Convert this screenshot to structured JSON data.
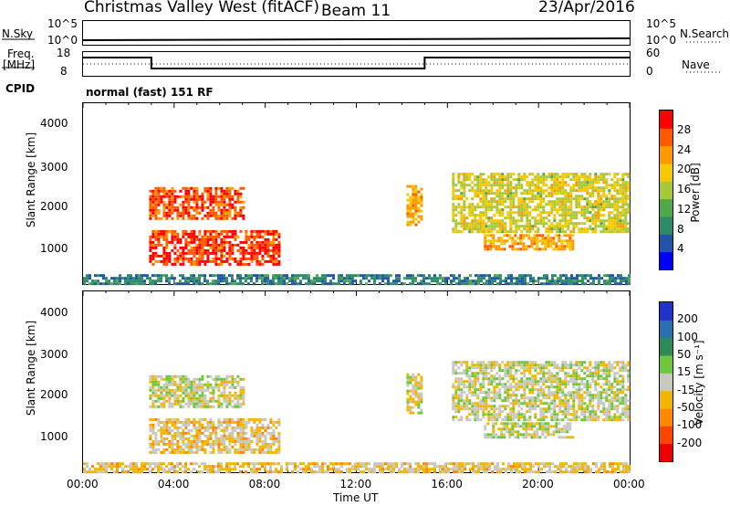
{
  "header": {
    "title": "Christmas Valley West (fitACF)",
    "beam": "Beam 11",
    "date": "23/Apr/2016"
  },
  "strip_nsky": {
    "left_label": "N.Sky",
    "right_label": "N.Search",
    "left_ticks": [
      "10^5",
      "10^0"
    ],
    "right_ticks": [
      "10^5",
      "10^0"
    ]
  },
  "strip_freq": {
    "left_label_1": "Freq.",
    "left_label_2": "[MHz]",
    "right_label": "Nave",
    "left_ticks": [
      "18",
      "8"
    ],
    "right_ticks": [
      "60",
      "0"
    ]
  },
  "cpid": {
    "label": "CPID",
    "mode": "normal (fast) 151 RF"
  },
  "panel_power": {
    "ylabel": "Slant Range [km]",
    "yticks": [
      "4000",
      "3000",
      "2000",
      "1000"
    ],
    "colorbar_label": "Power [dB]",
    "colorbar_ticks": [
      "28",
      "24",
      "20",
      "16",
      "12",
      "8",
      "4"
    ],
    "colors": [
      "#0000ff",
      "#2255aa",
      "#2e8b6a",
      "#4fa84a",
      "#a8c83a",
      "#f5c800",
      "#ff9900",
      "#ff5a00",
      "#ff0000"
    ]
  },
  "panel_velocity": {
    "ylabel": "Slant Range [km]",
    "yticks": [
      "4000",
      "3000",
      "2000",
      "1000"
    ],
    "colorbar_label": "Velocity [m s⁻¹]",
    "colorbar_ticks": [
      "200",
      "100",
      "50",
      "15",
      "-15",
      "-50",
      "-100",
      "-200"
    ],
    "colors": [
      "#2233cc",
      "#2b6fb3",
      "#2e8b57",
      "#6cc83a",
      "#c8c8c0",
      "#f2b600",
      "#ff8800",
      "#ff4400",
      "#ee0000"
    ]
  },
  "x_axis": {
    "label": "Time UT",
    "ticks": [
      "00:00",
      "04:00",
      "08:00",
      "12:00",
      "16:00",
      "20:00",
      "00:00"
    ]
  },
  "chart_data": [
    {
      "type": "heatmap",
      "name": "power",
      "title": "",
      "xlabel": "Time UT",
      "ylabel": "Slant Range [km]",
      "xlim": [
        0,
        24
      ],
      "ylim": [
        180,
        4600
      ],
      "zlim": [
        0,
        32
      ],
      "zlabel": "Power [dB]",
      "regions": [
        {
          "t0": 2.9,
          "t1": 7.1,
          "r0": 1750,
          "r1": 2550,
          "value": 27
        },
        {
          "t0": 2.9,
          "t1": 8.6,
          "r0": 650,
          "r1": 1500,
          "value": 28
        },
        {
          "t0": 14.2,
          "t1": 14.9,
          "r0": 1600,
          "r1": 2600,
          "value": 22
        },
        {
          "t0": 16.2,
          "t1": 23.9,
          "r0": 1450,
          "r1": 2900,
          "value": 18
        },
        {
          "t0": 17.6,
          "t1": 21.5,
          "r0": 1000,
          "r1": 1400,
          "value": 22
        },
        {
          "t0": 0.0,
          "t1": 24.0,
          "r0": 180,
          "r1": 420,
          "value": 8
        }
      ]
    },
    {
      "type": "heatmap",
      "name": "velocity",
      "title": "",
      "xlabel": "Time UT",
      "ylabel": "Slant Range [km]",
      "xlim": [
        0,
        24
      ],
      "ylim": [
        180,
        4600
      ],
      "zlim": [
        -200,
        200
      ],
      "zlabel": "Velocity [m s⁻¹]",
      "regions": [
        {
          "t0": 2.9,
          "t1": 7.1,
          "r0": 1750,
          "r1": 2550,
          "value": 0
        },
        {
          "t0": 2.9,
          "t1": 8.6,
          "r0": 650,
          "r1": 1500,
          "value": -30
        },
        {
          "t0": 14.2,
          "t1": 14.9,
          "r0": 1600,
          "r1": 2600,
          "value": 0
        },
        {
          "t0": 16.2,
          "t1": 23.9,
          "r0": 1450,
          "r1": 2900,
          "value": 0
        },
        {
          "t0": 17.6,
          "t1": 21.5,
          "r0": 1000,
          "r1": 1400,
          "value": 0
        },
        {
          "t0": 0.0,
          "t1": 24.0,
          "r0": 180,
          "r1": 420,
          "value": -30
        }
      ]
    }
  ]
}
